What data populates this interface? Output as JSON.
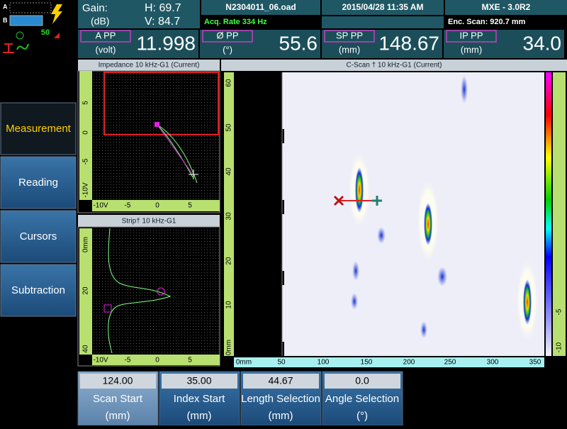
{
  "status": {
    "a": "A",
    "b": "B",
    "temp": "50"
  },
  "header": {
    "gain_label": "Gain:",
    "gain_unit": "(dB)",
    "h": "H: 69.7",
    "v": "V: 84.7",
    "file": "N2304011_06.oad",
    "datetime": "2015/04/28 11:35 AM",
    "version": "MXE - 3.0R2",
    "acq_rate": "Acq. Rate 334  Hz",
    "enc_scan": "Enc. Scan:  920.7 mm"
  },
  "readings": [
    {
      "label": "A PP",
      "unit": "(volt)",
      "value": "11.998"
    },
    {
      "label": "Ø PP",
      "unit": "(°)",
      "value": "55.6"
    },
    {
      "label": "SP PP",
      "unit": "(mm)",
      "value": "148.67"
    },
    {
      "label": "IP PP",
      "unit": "(mm)",
      "value": "34.0"
    }
  ],
  "menu": [
    "Measurement",
    "Reading",
    "Cursors",
    "Subtraction"
  ],
  "impedance": {
    "title": "Impedance 10 kHz-G1 (Current)",
    "y_labels": [
      "5",
      "0",
      "-5",
      "-10V"
    ],
    "x_labels": [
      "-10V",
      "-5",
      "0",
      "5"
    ]
  },
  "strip": {
    "title": "Strip† 10 kHz-G1",
    "y_labels": [
      "0mm",
      "20",
      "40"
    ],
    "x_labels": [
      "-10V",
      "-5",
      "0",
      "5"
    ]
  },
  "cscan": {
    "title": "C-Scan † 10 kHz-G1 (Current)",
    "y_labels": [
      "60",
      "50",
      "40",
      "30",
      "20",
      "10",
      "0mm"
    ],
    "x_labels": [
      "0mm",
      "50",
      "100",
      "150",
      "200",
      "250",
      "300",
      "350"
    ],
    "scale_labels": [
      "-5",
      "-10"
    ]
  },
  "controls": [
    {
      "value": "124.00",
      "label": "Scan Start",
      "unit": "(mm)"
    },
    {
      "value": "35.00",
      "label": "Index Start",
      "unit": "(mm)"
    },
    {
      "value": "44.67",
      "label": "Length Selection",
      "unit": "(mm)"
    },
    {
      "value": "0.0",
      "label": "Angle Selection",
      "unit": "(°)"
    }
  ]
}
